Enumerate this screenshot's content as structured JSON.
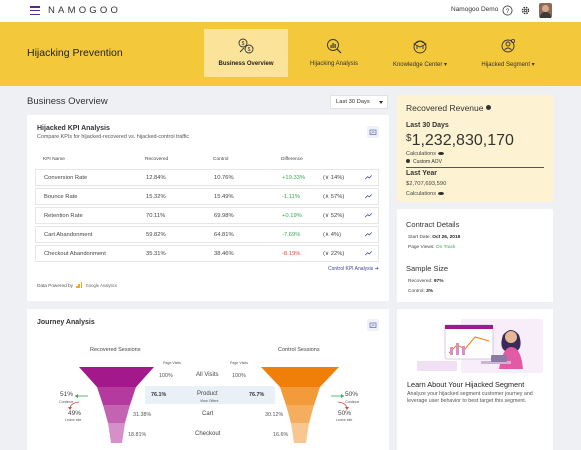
{
  "topbar": {
    "logo": "NAMOGOO",
    "account": "Namogoo Demo",
    "icons": [
      "hamburger-icon",
      "help-icon",
      "gear-icon",
      "avatar"
    ]
  },
  "hero": {
    "title": "Hijacking Prevention",
    "tabs": [
      {
        "label": "Business Overview",
        "active": true
      },
      {
        "label": "Hijacking Analysis",
        "active": false
      },
      {
        "label": "Knowledge Center ▾",
        "active": false
      },
      {
        "label": "Hijacked Segment ▾",
        "active": false
      }
    ]
  },
  "overview": {
    "title": "Business Overview",
    "range": "Last 30 Days"
  },
  "kpi": {
    "title": "Hijacked KPI Analysis",
    "subtitle": "Compare KPIs for hijacked-recovered vs. hijacked-control traffic",
    "headers": [
      "KPI Name",
      "Recovered",
      "Control",
      "Difference"
    ],
    "rows": [
      {
        "name": "Conversion Rate",
        "recovered": "12.84%",
        "control": "10.76%",
        "diff": "+19.33%",
        "diff_sign": "pos",
        "arrow": "(∨ 14%)"
      },
      {
        "name": "Bounce Rate",
        "recovered": "15.32%",
        "control": "15.49%",
        "diff": "-1.11%",
        "diff_sign": "pos",
        "arrow": "(∧ 57%)"
      },
      {
        "name": "Retention Rate",
        "recovered": "70.11%",
        "control": "69.98%",
        "diff": "+0.19%",
        "diff_sign": "pos",
        "arrow": "(∨ 52%)"
      },
      {
        "name": "Cart Abandonment",
        "recovered": "59.82%",
        "control": "64.81%",
        "diff": "-7.69%",
        "diff_sign": "pos",
        "arrow": "(∧ 4%)"
      },
      {
        "name": "Checkout Abandonment",
        "recovered": "35.31%",
        "control": "38.46%",
        "diff": "-8.19%",
        "diff_sign": "neg",
        "arrow": "(∨ 22%)"
      }
    ],
    "control_link": "Control KPI Analysis ➔",
    "powered_by": "Data Powered by",
    "powered_source": "Google Analytics"
  },
  "journey": {
    "title": "Journey Analysis",
    "recovered_label": "Recovered Sessions",
    "control_label": "Control Sessions",
    "page_visits": "Page Visits",
    "stages": [
      {
        "name": "All Visits",
        "sub": "",
        "recovered": "100%",
        "control": "100%"
      },
      {
        "name": "Product",
        "sub": "View Offers",
        "recovered": "76.1%",
        "control": "76.7%"
      },
      {
        "name": "Cart",
        "sub": "",
        "recovered": "31.38%",
        "control": "30.12%"
      },
      {
        "name": "Checkout",
        "sub": "",
        "recovered": "18.81%",
        "control": "16.6%"
      }
    ],
    "left_continue": "51%",
    "left_continue_label": "Continue",
    "left_leave": "49%",
    "left_leave_label": "Leave site",
    "right_continue": "50%",
    "right_continue_label": "Continue",
    "right_leave": "50%",
    "right_leave_label": "Leave site"
  },
  "recovered": {
    "title": "Recovered Revenue",
    "last30_label": "Last 30 Days",
    "currency": "$",
    "last30_value": "1,232,830,170",
    "calculations": "Calculations",
    "custom_aov": "Custom AOV",
    "lastyear_label": "Last Year",
    "lastyear_value": "$2,707,693,590"
  },
  "contract": {
    "title": "Contract Details",
    "start_label": "Start Date:",
    "start_value": "Oct 26, 2019",
    "views_label": "Page Views:",
    "views_value": "On Track",
    "sample_title": "Sample Size",
    "recovered_label": "Recovered:",
    "recovered_value": "97%",
    "control_label": "Control:",
    "control_value": "3%"
  },
  "learn": {
    "title": "Learn About Your Hijacked Segment",
    "body": "Analyze your hijacked segment customer journey and leverage user behavior to best target this segment."
  },
  "colors": {
    "hero_yellow": "#f3c83a",
    "recovered_funnel": "#a3188a",
    "control_funnel": "#f07f0a",
    "positive": "#3aa657",
    "negative": "#e0453a"
  }
}
